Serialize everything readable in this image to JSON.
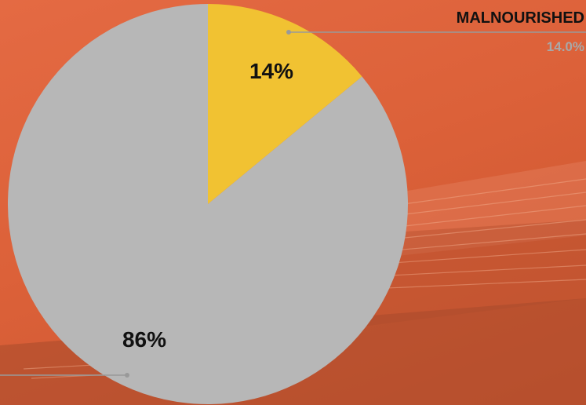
{
  "chart_data": {
    "type": "pie",
    "start_angle": "12 o'clock, clockwise",
    "slices": [
      {
        "label": "MALNOURISHED",
        "value": 14.0,
        "data_label": "14%",
        "legend_value": "14.0%",
        "color": "#f1c232"
      },
      {
        "label": "",
        "value": 86.0,
        "data_label": "86%",
        "color": "#b7b7b7"
      }
    ]
  },
  "colors": {
    "background": "#dc6139",
    "leader_line": "#999999"
  }
}
